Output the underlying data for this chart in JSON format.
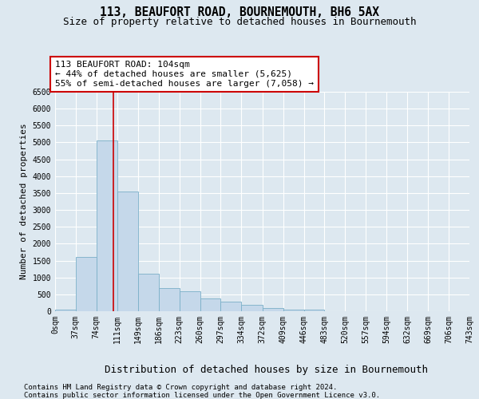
{
  "title": "113, BEAUFORT ROAD, BOURNEMOUTH, BH6 5AX",
  "subtitle": "Size of property relative to detached houses in Bournemouth",
  "xlabel": "Distribution of detached houses by size in Bournemouth",
  "ylabel": "Number of detached properties",
  "bar_edges": [
    0,
    37,
    74,
    111,
    149,
    186,
    223,
    260,
    297,
    334,
    372,
    409,
    446,
    483,
    520,
    557,
    594,
    632,
    669,
    706,
    743
  ],
  "bar_heights": [
    50,
    1600,
    5050,
    3550,
    1100,
    680,
    580,
    370,
    290,
    195,
    95,
    50,
    50,
    0,
    0,
    0,
    0,
    0,
    0,
    0
  ],
  "bar_color": "#c5d8ea",
  "bar_edge_color": "#7aafc8",
  "vline_x": 104,
  "vline_color": "#cc0000",
  "annotation_text": "113 BEAUFORT ROAD: 104sqm\n← 44% of detached houses are smaller (5,625)\n55% of semi-detached houses are larger (7,058) →",
  "annotation_box_color": "white",
  "annotation_box_edge": "#cc0000",
  "annotation_fontsize": 8,
  "title_fontsize": 10.5,
  "subtitle_fontsize": 9,
  "xlabel_fontsize": 9,
  "ylabel_fontsize": 8,
  "ylim_max": 6500,
  "yticks": [
    0,
    500,
    1000,
    1500,
    2000,
    2500,
    3000,
    3500,
    4000,
    4500,
    5000,
    5500,
    6000,
    6500
  ],
  "bg_color": "#dde8f0",
  "grid_color": "#ffffff",
  "footer_line1": "Contains HM Land Registry data © Crown copyright and database right 2024.",
  "footer_line2": "Contains public sector information licensed under the Open Government Licence v3.0.",
  "footer_fontsize": 6.5,
  "tick_label_fontsize": 7
}
